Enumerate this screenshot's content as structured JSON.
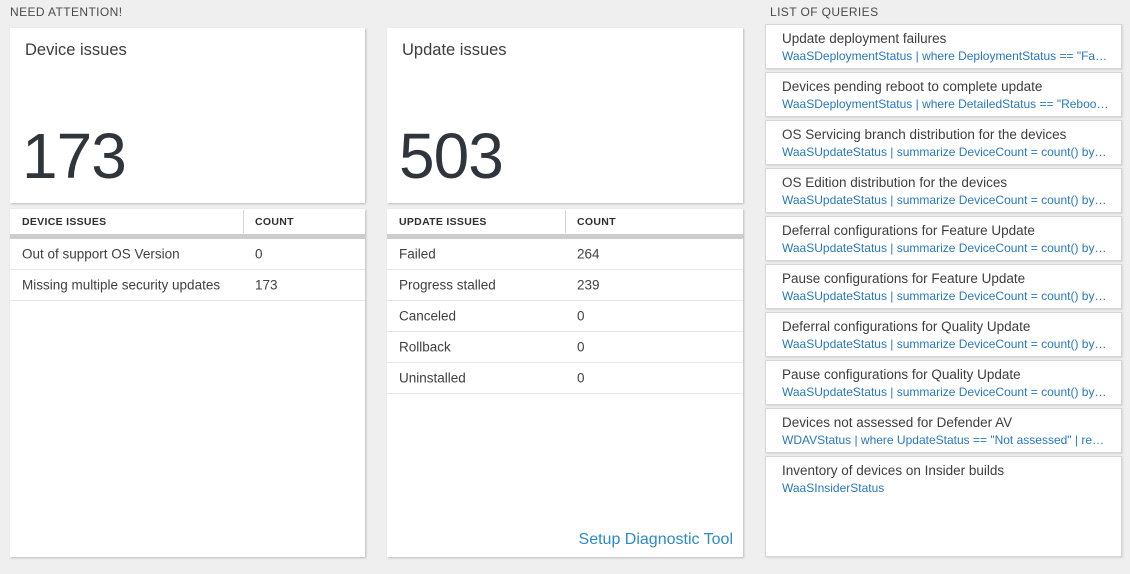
{
  "colors": {
    "page_background": "#efefef",
    "panel_background": "#ffffff",
    "big_number_text": "#2f353b",
    "query_link_blue": "#2878bd",
    "diagnostic_link_blue": "#2d8ac9",
    "header_bar_gray": "#cdcdcd"
  },
  "need_attention": {
    "label": "NEED ATTENTION!",
    "cards": [
      {
        "title": "Device issues",
        "count": "173",
        "table": {
          "headers": [
            "DEVICE ISSUES",
            "COUNT"
          ],
          "rows": [
            [
              "Out of support OS Version",
              "0"
            ],
            [
              "Missing multiple security updates",
              "173"
            ]
          ]
        }
      },
      {
        "title": "Update issues",
        "count": "503",
        "table": {
          "headers": [
            "UPDATE ISSUES",
            "COUNT"
          ],
          "rows": [
            [
              "Failed",
              "264"
            ],
            [
              "Progress stalled",
              "239"
            ],
            [
              "Canceled",
              "0"
            ],
            [
              "Rollback",
              "0"
            ],
            [
              "Uninstalled",
              "0"
            ]
          ]
        },
        "footer_link": "Setup Diagnostic Tool"
      }
    ]
  },
  "queries": {
    "label": "LIST OF QUERIES",
    "items": [
      {
        "title": "Update deployment failures",
        "query": "WaaSDeploymentStatus | where DeploymentStatus == \"Failed\" |..."
      },
      {
        "title": "Devices pending reboot to complete update",
        "query": "WaaSDeploymentStatus | where DetailedStatus == \"Reboot pend..."
      },
      {
        "title": "OS Servicing branch distribution for the devices",
        "query": "WaaSUpdateStatus | summarize DeviceCount = count() by OSSer..."
      },
      {
        "title": "OS Edition distribution for the devices",
        "query": "WaaSUpdateStatus | summarize DeviceCount = count() by OSEdit..."
      },
      {
        "title": "Deferral configurations for Feature Update",
        "query": "WaaSUpdateStatus | summarize DeviceCount = count() by Featur..."
      },
      {
        "title": "Pause configurations for Feature Update",
        "query": "WaaSUpdateStatus | summarize DeviceCount = count() by Featur..."
      },
      {
        "title": "Deferral configurations for Quality Update",
        "query": "WaaSUpdateStatus | summarize DeviceCount = count() by Qualit..."
      },
      {
        "title": "Pause configurations for Quality Update",
        "query": "WaaSUpdateStatus | summarize DeviceCount = count() by Qualit..."
      },
      {
        "title": "Devices not assessed for Defender AV",
        "query": "WDAVStatus | where UpdateStatus == \"Not assessed\" | render ta..."
      },
      {
        "title": "Inventory of devices on Insider builds",
        "query": "WaaSInsiderStatus"
      }
    ]
  }
}
